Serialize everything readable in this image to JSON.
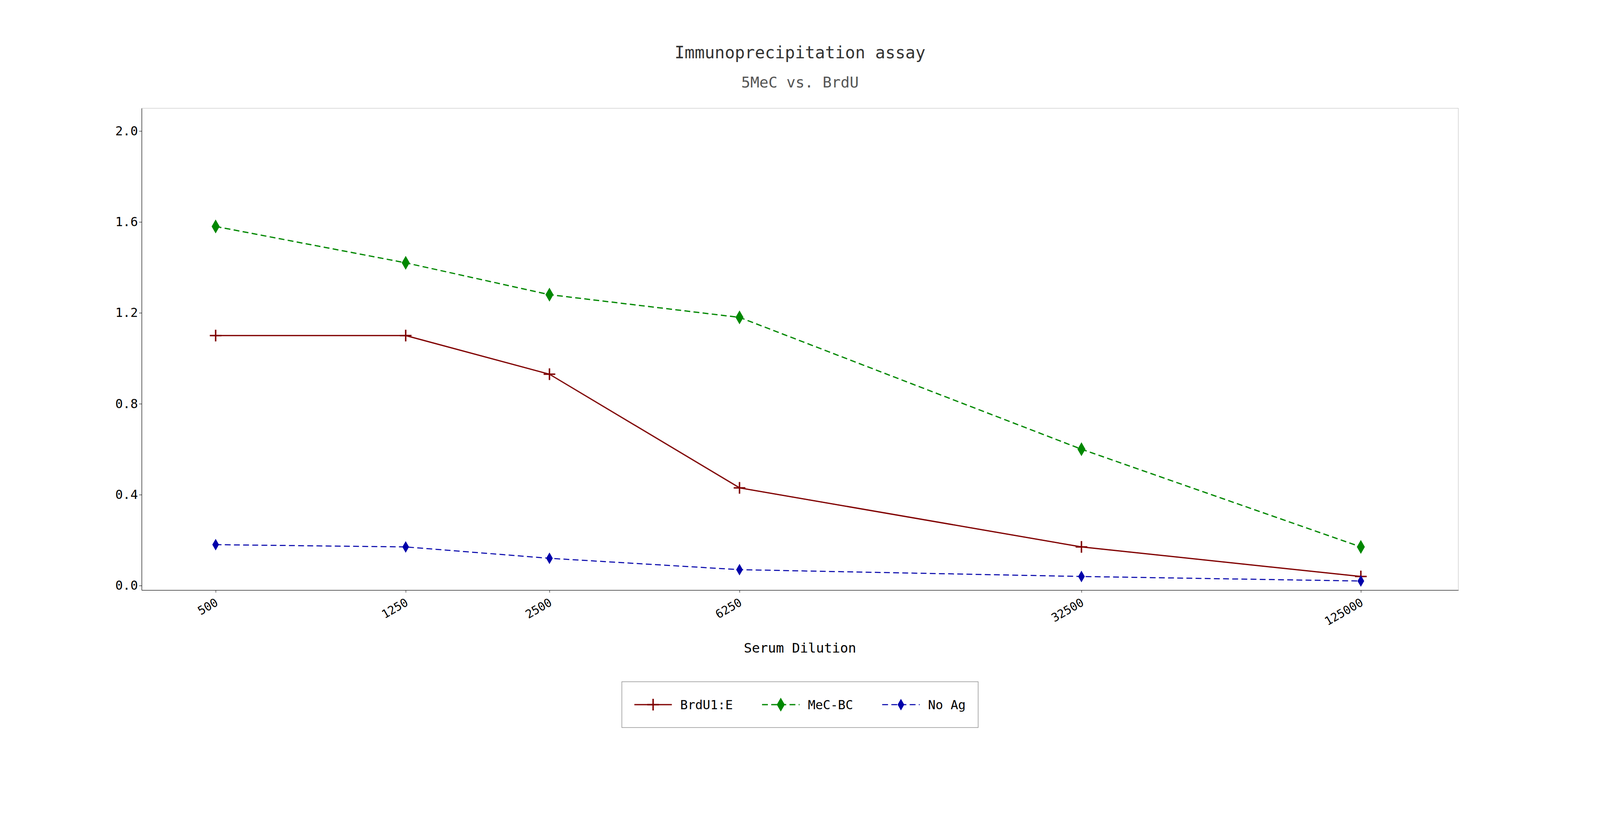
{
  "chart_data": {
    "type": "line",
    "title": "Immunoprecipitation assay",
    "subtitle": "5MeC vs. BrdU",
    "x_label": "Serum Dilution",
    "log": "x",
    "x": [
      500,
      1250,
      2500,
      6250,
      32500,
      125000
    ],
    "xlim": [
      350,
      200000
    ],
    "xticks": [
      500,
      1250,
      2500,
      6250,
      32500,
      125000
    ],
    "ylim": [
      -0.02,
      2.1
    ],
    "yticks": [
      {
        "value": 0.0,
        "label": "0.0"
      },
      0.4,
      0.8,
      1.2,
      1.6,
      {
        "value": 2.0,
        "label": "2.0"
      }
    ],
    "grid": false,
    "legend": "bottom",
    "series": [
      {
        "name": "BrdU1:E",
        "color": "#800000",
        "marker": "plus",
        "line_style": "solid",
        "values": [
          1.1,
          1.1,
          0.93,
          0.43,
          0.17,
          0.04
        ]
      },
      {
        "name": "MeC-BC",
        "color": "#008800",
        "marker": "diamond",
        "line_style": "dashed",
        "values": [
          1.58,
          1.42,
          1.28,
          1.18,
          0.6,
          0.17
        ]
      },
      {
        "name": "No Ag",
        "color": "#0000AA",
        "marker": "diamond",
        "line_style": "dashed",
        "values": [
          0.18,
          0.17,
          0.12,
          0.07,
          0.04,
          0.02
        ]
      }
    ]
  }
}
